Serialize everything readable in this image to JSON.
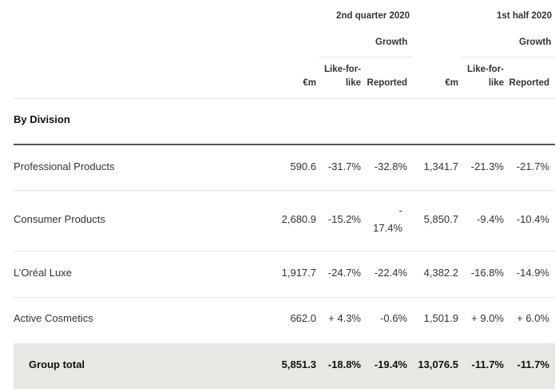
{
  "header": {
    "q2_label": "2nd quarter 2020",
    "h1_label": "1st half 2020",
    "growth_label_q2": "Growth",
    "growth_label_h1": "Growth",
    "em_q2": "€m",
    "lfl_q2_line1": "Like-for-",
    "lfl_q2_line2": "like",
    "reported_q2": "Reported",
    "em_h1": "€m",
    "lfl_h1_line1": "Like-for-",
    "lfl_h1_line2": "like",
    "reported_h1": "Reported"
  },
  "section_title": "By Division",
  "rows": [
    {
      "name": "Professional Products",
      "q2_em": "590.6",
      "q2_lfl": "-31.7%",
      "q2_rep": "-32.8%",
      "h1_em": "1,341.7",
      "h1_lfl": "-21.3%",
      "h1_rep": "-21.7%"
    },
    {
      "name": "Consumer Products",
      "q2_em": "2,680.9",
      "q2_lfl": "-15.2%",
      "q2_rep_line1": "-",
      "q2_rep_line2": "17.4%",
      "h1_em": "5,850.7",
      "h1_lfl": "-9.4%",
      "h1_rep": "-10.4%"
    },
    {
      "name": "L’Oréal Luxe",
      "q2_em": "1,917.7",
      "q2_lfl": "-24.7%",
      "q2_rep": "-22.4%",
      "h1_em": "4,382.2",
      "h1_lfl": "-16.8%",
      "h1_rep": "-14.9%"
    },
    {
      "name": "Active Cosmetics",
      "q2_em": "662.0",
      "q2_lfl": "+ 4.3%",
      "q2_rep": "-0.6%",
      "h1_em": "1,501.9",
      "h1_lfl": "+ 9.0%",
      "h1_rep": "+ 6.0%"
    }
  ],
  "total": {
    "name": "Group total",
    "q2_em": "5,851.3",
    "q2_lfl": "-18.8%",
    "q2_rep": "-19.4%",
    "h1_em": "13,076.5",
    "h1_lfl": "-11.7%",
    "h1_rep": "-11.7%"
  }
}
